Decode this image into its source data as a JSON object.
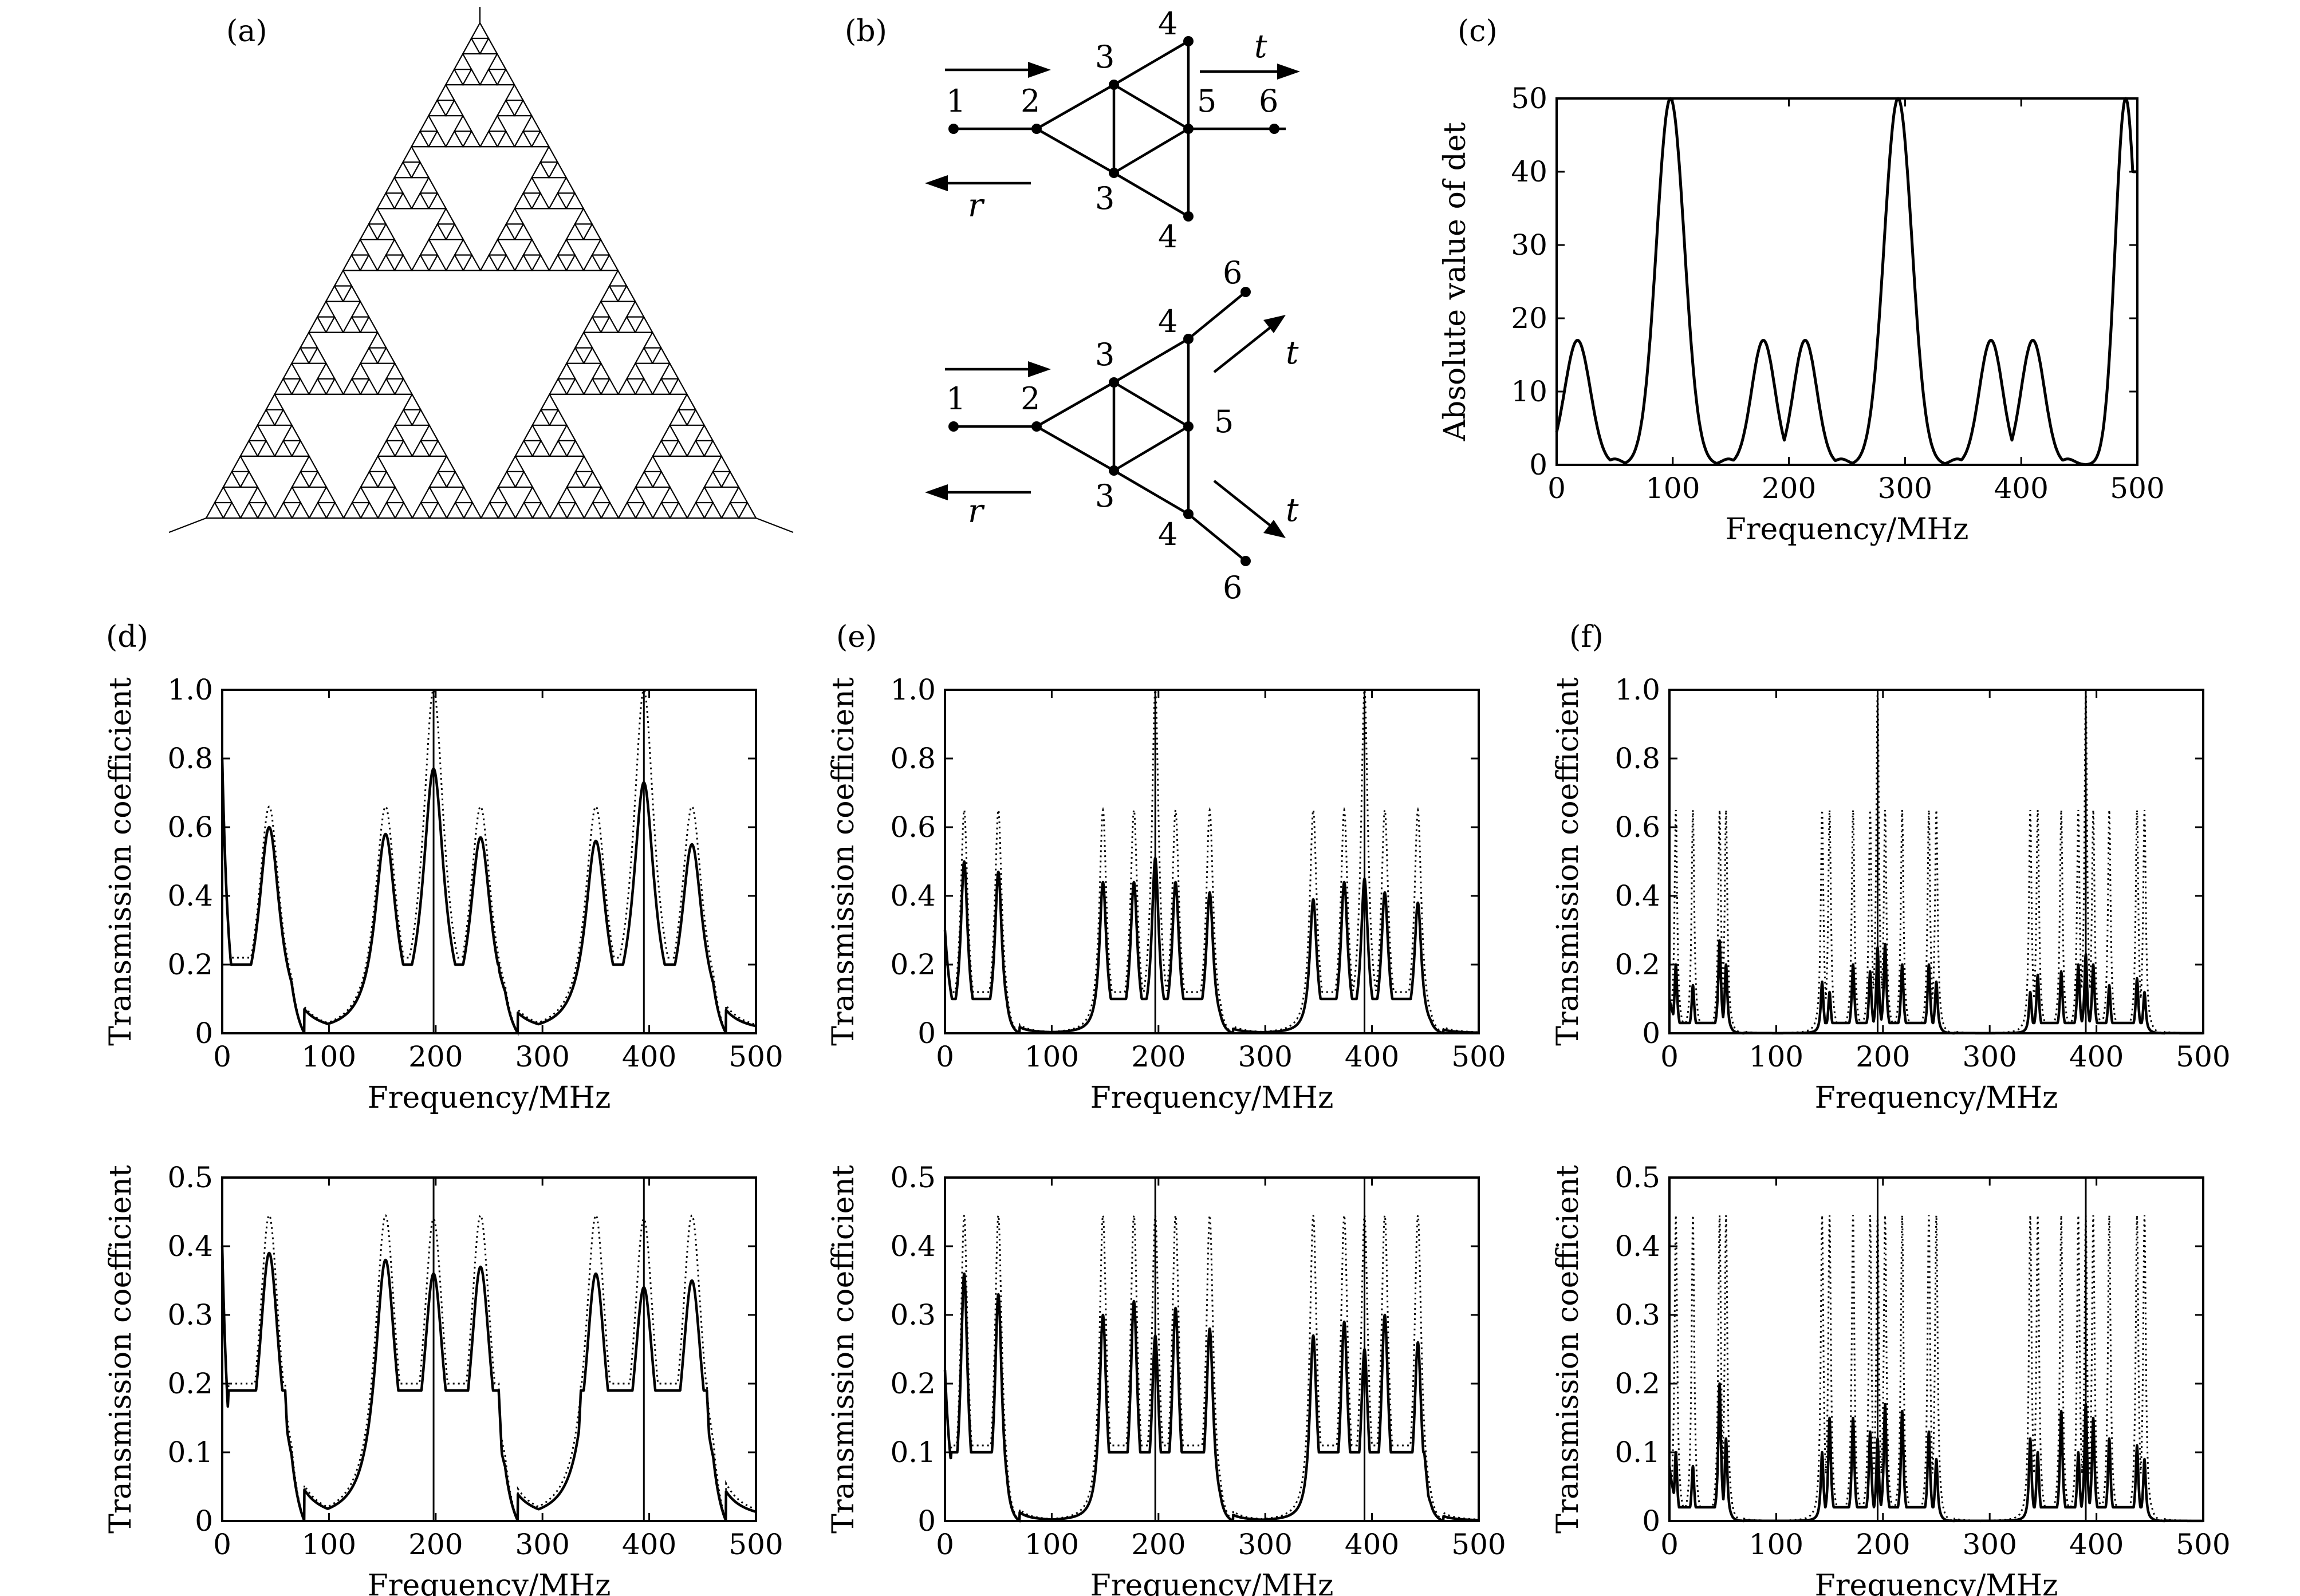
{
  "panels": {
    "a": {
      "label": "(a)"
    },
    "b": {
      "label": "(b)",
      "top_graph": {
        "node_labels": [
          "1",
          "2",
          "3",
          "3",
          "4",
          "4",
          "5",
          "6"
        ],
        "arrow_labels": {
          "transmitted": "t",
          "reflected": "r"
        }
      },
      "bottom_graph": {
        "node_labels": [
          "1",
          "2",
          "3",
          "3",
          "4",
          "4",
          "5",
          "6",
          "6"
        ],
        "arrow_labels": {
          "transmitted_upper": "t",
          "transmitted_lower": "t",
          "reflected": "r"
        }
      }
    },
    "c": {
      "label": "(c)"
    },
    "d": {
      "label": "(d)"
    },
    "e": {
      "label": "(e)"
    },
    "f": {
      "label": "(f)"
    }
  },
  "chart_data": [
    {
      "id": "c",
      "type": "line",
      "xlabel": "Frequency/MHz",
      "ylabel": "Absolute value of det",
      "xlim": [
        0,
        500
      ],
      "ylim": [
        0,
        50
      ],
      "xticks": [
        "0",
        "100",
        "200",
        "300",
        "400",
        "500"
      ],
      "yticks": [
        "0",
        "10",
        "20",
        "30",
        "40",
        "50"
      ],
      "peaks": [
        {
          "x": 18,
          "y": 17,
          "w": 11
        },
        {
          "x": 50,
          "y": 0.8,
          "w": 6
        },
        {
          "x": 98,
          "y": 50,
          "w": 12
        },
        {
          "x": 148,
          "y": 0.8,
          "w": 6
        },
        {
          "x": 178,
          "y": 17,
          "w": 10
        },
        {
          "x": 214,
          "y": 17,
          "w": 10
        },
        {
          "x": 245,
          "y": 0.8,
          "w": 6
        },
        {
          "x": 294,
          "y": 50,
          "w": 12
        },
        {
          "x": 345,
          "y": 0.8,
          "w": 6
        },
        {
          "x": 374,
          "y": 17,
          "w": 10
        },
        {
          "x": 410,
          "y": 17,
          "w": 10
        },
        {
          "x": 440,
          "y": 0.8,
          "w": 6
        },
        {
          "x": 490,
          "y": 50,
          "w": 9
        }
      ]
    },
    {
      "id": "d-top",
      "type": "line",
      "xlabel": "Frequency/MHz",
      "ylabel": "Transmission coefficient",
      "xlim": [
        0,
        500
      ],
      "ylim": [
        0,
        1.0
      ],
      "xticks": [
        "0",
        "100",
        "200",
        "300",
        "400",
        "500"
      ],
      "yticks": [
        "0",
        "0.2",
        "0.4",
        "0.6",
        "0.8",
        "1.0"
      ],
      "peak_width": 12,
      "bands": [
        [
          0,
          65
        ],
        [
          135,
          265
        ],
        [
          330,
          460
        ]
      ],
      "ripples": [
        70,
        130,
        270,
        325,
        465
      ],
      "ripple_height": 0.04,
      "valley": [
        0.22,
        0.2
      ],
      "peaks_solid": [
        {
          "x": 44,
          "y": 0.6
        },
        {
          "x": 153,
          "y": 0.58
        },
        {
          "x": 198,
          "y": 0.77
        },
        {
          "x": 242,
          "y": 0.57
        },
        {
          "x": 350,
          "y": 0.56
        },
        {
          "x": 395,
          "y": 0.73
        },
        {
          "x": 440,
          "y": 0.55
        }
      ],
      "peaks_dotted": [
        {
          "x": 44,
          "y": 0.66
        },
        {
          "x": 153,
          "y": 0.66
        },
        {
          "x": 198,
          "y": 1.0
        },
        {
          "x": 242,
          "y": 0.66
        },
        {
          "x": 350,
          "y": 0.66
        },
        {
          "x": 395,
          "y": 1.0
        },
        {
          "x": 440,
          "y": 0.66
        }
      ],
      "start_value": 0.8,
      "spikes": [
        198,
        395
      ]
    },
    {
      "id": "d-bottom",
      "type": "line",
      "xlabel": "Frequency/MHz",
      "ylabel": "Transmission coefficient",
      "xlim": [
        0,
        500
      ],
      "ylim": [
        0,
        0.5
      ],
      "xticks": [
        "0",
        "100",
        "200",
        "300",
        "400",
        "500"
      ],
      "yticks": [
        "0",
        "0.1",
        "0.2",
        "0.3",
        "0.4",
        "0.5"
      ],
      "peak_width": 12,
      "bands": [
        [
          0,
          65
        ],
        [
          135,
          265
        ],
        [
          330,
          460
        ]
      ],
      "ripples": [
        75,
        130,
        270,
        325,
        470
      ],
      "ripple_height": 0.015,
      "valley": [
        0.2,
        0.19
      ],
      "peaks_solid": [
        {
          "x": 44,
          "y": 0.39
        },
        {
          "x": 153,
          "y": 0.38
        },
        {
          "x": 198,
          "y": 0.36
        },
        {
          "x": 242,
          "y": 0.37
        },
        {
          "x": 350,
          "y": 0.36
        },
        {
          "x": 395,
          "y": 0.34
        },
        {
          "x": 440,
          "y": 0.35
        }
      ],
      "peaks_dotted": [
        {
          "x": 44,
          "y": 0.445
        },
        {
          "x": 153,
          "y": 0.445
        },
        {
          "x": 198,
          "y": 0.44
        },
        {
          "x": 242,
          "y": 0.445
        },
        {
          "x": 350,
          "y": 0.445
        },
        {
          "x": 395,
          "y": 0.44
        },
        {
          "x": 440,
          "y": 0.445
        }
      ],
      "start_value": 0.4,
      "spikes": [
        198,
        395
      ]
    },
    {
      "id": "e-top",
      "type": "line",
      "xlabel": "Frequency/MHz",
      "ylabel": "Transmission coefficient",
      "xlim": [
        0,
        500
      ],
      "ylim": [
        0,
        1.0
      ],
      "xticks": [
        "0",
        "100",
        "200",
        "300",
        "400",
        "500"
      ],
      "yticks": [
        "0",
        "0.2",
        "0.4",
        "0.6",
        "0.8",
        "1.0"
      ],
      "peak_width": 4,
      "bands": [
        [
          0,
          58
        ],
        [
          140,
          258
        ],
        [
          335,
          455
        ]
      ],
      "ripples": [],
      "ripple_height": 0,
      "valley": [
        0.12,
        0.1
      ],
      "peaks_solid": [
        {
          "x": 18,
          "y": 0.5
        },
        {
          "x": 50,
          "y": 0.47
        },
        {
          "x": 148,
          "y": 0.44
        },
        {
          "x": 177,
          "y": 0.44
        },
        {
          "x": 197,
          "y": 0.51
        },
        {
          "x": 216,
          "y": 0.44
        },
        {
          "x": 248,
          "y": 0.41
        },
        {
          "x": 345,
          "y": 0.39
        },
        {
          "x": 374,
          "y": 0.44
        },
        {
          "x": 393,
          "y": 0.45
        },
        {
          "x": 412,
          "y": 0.41
        },
        {
          "x": 443,
          "y": 0.38
        }
      ],
      "peaks_dotted": [
        {
          "x": 18,
          "y": 0.65
        },
        {
          "x": 50,
          "y": 0.65
        },
        {
          "x": 148,
          "y": 0.65
        },
        {
          "x": 177,
          "y": 0.65
        },
        {
          "x": 197,
          "y": 1.0
        },
        {
          "x": 216,
          "y": 0.65
        },
        {
          "x": 248,
          "y": 0.65
        },
        {
          "x": 345,
          "y": 0.65
        },
        {
          "x": 374,
          "y": 0.65
        },
        {
          "x": 393,
          "y": 1.0
        },
        {
          "x": 412,
          "y": 0.65
        },
        {
          "x": 443,
          "y": 0.65
        }
      ],
      "start_value": 0.3,
      "spikes": [
        197,
        393
      ]
    },
    {
      "id": "e-bottom",
      "type": "line",
      "xlabel": "Frequency/MHz",
      "ylabel": "Transmission coefficient",
      "xlim": [
        0,
        500
      ],
      "ylim": [
        0,
        0.5
      ],
      "xticks": [
        "0",
        "100",
        "200",
        "300",
        "400",
        "500"
      ],
      "yticks": [
        "0",
        "0.1",
        "0.2",
        "0.3",
        "0.4",
        "0.5"
      ],
      "peak_width": 4,
      "bands": [
        [
          0,
          58
        ],
        [
          140,
          258
        ],
        [
          335,
          455
        ]
      ],
      "ripples": [],
      "ripple_height": 0,
      "valley": [
        0.11,
        0.1
      ],
      "peaks_solid": [
        {
          "x": 18,
          "y": 0.36
        },
        {
          "x": 50,
          "y": 0.33
        },
        {
          "x": 148,
          "y": 0.3
        },
        {
          "x": 177,
          "y": 0.32
        },
        {
          "x": 197,
          "y": 0.27
        },
        {
          "x": 216,
          "y": 0.31
        },
        {
          "x": 248,
          "y": 0.28
        },
        {
          "x": 345,
          "y": 0.27
        },
        {
          "x": 374,
          "y": 0.29
        },
        {
          "x": 393,
          "y": 0.25
        },
        {
          "x": 412,
          "y": 0.3
        },
        {
          "x": 443,
          "y": 0.26
        }
      ],
      "peaks_dotted": [
        {
          "x": 18,
          "y": 0.445
        },
        {
          "x": 50,
          "y": 0.445
        },
        {
          "x": 148,
          "y": 0.445
        },
        {
          "x": 177,
          "y": 0.445
        },
        {
          "x": 197,
          "y": 0.445
        },
        {
          "x": 216,
          "y": 0.445
        },
        {
          "x": 248,
          "y": 0.445
        },
        {
          "x": 345,
          "y": 0.445
        },
        {
          "x": 374,
          "y": 0.445
        },
        {
          "x": 393,
          "y": 0.445
        },
        {
          "x": 412,
          "y": 0.445
        },
        {
          "x": 443,
          "y": 0.445
        }
      ],
      "start_value": 0.22,
      "spikes": [
        197,
        393
      ]
    },
    {
      "id": "f-top",
      "type": "line",
      "xlabel": "Frequency/MHz",
      "ylabel": "Transmission coefficient",
      "xlim": [
        0,
        500
      ],
      "ylim": [
        0,
        1.0
      ],
      "xticks": [
        "0",
        "100",
        "200",
        "300",
        "400",
        "500"
      ],
      "yticks": [
        "0",
        "0.2",
        "0.4",
        "0.6",
        "0.8",
        "1.0"
      ],
      "peak_width": 1.5,
      "bands": [
        [
          0,
          58
        ],
        [
          138,
          255
        ],
        [
          332,
          452
        ]
      ],
      "ripples": [],
      "ripple_height": 0,
      "valley": [
        0.03,
        0.03
      ],
      "peaks_solid": [
        {
          "x": 6,
          "y": 0.2
        },
        {
          "x": 22,
          "y": 0.14
        },
        {
          "x": 47,
          "y": 0.27
        },
        {
          "x": 53,
          "y": 0.2
        },
        {
          "x": 143,
          "y": 0.15
        },
        {
          "x": 150,
          "y": 0.12
        },
        {
          "x": 172,
          "y": 0.2
        },
        {
          "x": 188,
          "y": 0.18
        },
        {
          "x": 195,
          "y": 0.25
        },
        {
          "x": 202,
          "y": 0.26
        },
        {
          "x": 218,
          "y": 0.2
        },
        {
          "x": 243,
          "y": 0.2
        },
        {
          "x": 250,
          "y": 0.15
        },
        {
          "x": 338,
          "y": 0.12
        },
        {
          "x": 345,
          "y": 0.17
        },
        {
          "x": 367,
          "y": 0.18
        },
        {
          "x": 383,
          "y": 0.2
        },
        {
          "x": 390,
          "y": 0.23
        },
        {
          "x": 397,
          "y": 0.2
        },
        {
          "x": 412,
          "y": 0.14
        },
        {
          "x": 438,
          "y": 0.16
        },
        {
          "x": 445,
          "y": 0.12
        }
      ],
      "peaks_dotted": [
        {
          "x": 6,
          "y": 0.65
        },
        {
          "x": 22,
          "y": 0.65
        },
        {
          "x": 47,
          "y": 0.65
        },
        {
          "x": 53,
          "y": 0.65
        },
        {
          "x": 143,
          "y": 0.65
        },
        {
          "x": 150,
          "y": 0.65
        },
        {
          "x": 172,
          "y": 0.65
        },
        {
          "x": 188,
          "y": 0.65
        },
        {
          "x": 195,
          "y": 1.0
        },
        {
          "x": 202,
          "y": 0.65
        },
        {
          "x": 218,
          "y": 0.65
        },
        {
          "x": 243,
          "y": 0.65
        },
        {
          "x": 250,
          "y": 0.65
        },
        {
          "x": 338,
          "y": 0.65
        },
        {
          "x": 345,
          "y": 0.65
        },
        {
          "x": 367,
          "y": 0.65
        },
        {
          "x": 383,
          "y": 0.65
        },
        {
          "x": 390,
          "y": 1.0
        },
        {
          "x": 397,
          "y": 0.65
        },
        {
          "x": 412,
          "y": 0.65
        },
        {
          "x": 438,
          "y": 0.65
        },
        {
          "x": 445,
          "y": 0.65
        }
      ],
      "start_value": 0.1,
      "spikes": [
        195,
        390
      ]
    },
    {
      "id": "f-bottom",
      "type": "line",
      "xlabel": "Frequency/MHz",
      "ylabel": "Transmission coefficient",
      "xlim": [
        0,
        500
      ],
      "ylim": [
        0,
        0.5
      ],
      "xticks": [
        "0",
        "100",
        "200",
        "300",
        "400",
        "500"
      ],
      "yticks": [
        "0",
        "0.1",
        "0.2",
        "0.3",
        "0.4",
        "0.5"
      ],
      "peak_width": 1.5,
      "bands": [
        [
          0,
          58
        ],
        [
          138,
          255
        ],
        [
          332,
          452
        ]
      ],
      "ripples": [],
      "ripple_height": 0,
      "valley": [
        0.02,
        0.02
      ],
      "peaks_solid": [
        {
          "x": 6,
          "y": 0.1
        },
        {
          "x": 22,
          "y": 0.08
        },
        {
          "x": 47,
          "y": 0.2
        },
        {
          "x": 53,
          "y": 0.12
        },
        {
          "x": 143,
          "y": 0.1
        },
        {
          "x": 150,
          "y": 0.15
        },
        {
          "x": 172,
          "y": 0.15
        },
        {
          "x": 188,
          "y": 0.13
        },
        {
          "x": 195,
          "y": 0.12
        },
        {
          "x": 202,
          "y": 0.17
        },
        {
          "x": 218,
          "y": 0.16
        },
        {
          "x": 243,
          "y": 0.13
        },
        {
          "x": 250,
          "y": 0.09
        },
        {
          "x": 338,
          "y": 0.12
        },
        {
          "x": 345,
          "y": 0.1
        },
        {
          "x": 367,
          "y": 0.16
        },
        {
          "x": 383,
          "y": 0.1
        },
        {
          "x": 390,
          "y": 0.17
        },
        {
          "x": 397,
          "y": 0.15
        },
        {
          "x": 412,
          "y": 0.12
        },
        {
          "x": 438,
          "y": 0.11
        },
        {
          "x": 445,
          "y": 0.09
        }
      ],
      "peaks_dotted": [
        {
          "x": 6,
          "y": 0.445
        },
        {
          "x": 22,
          "y": 0.445
        },
        {
          "x": 47,
          "y": 0.445
        },
        {
          "x": 53,
          "y": 0.445
        },
        {
          "x": 143,
          "y": 0.445
        },
        {
          "x": 150,
          "y": 0.445
        },
        {
          "x": 172,
          "y": 0.445
        },
        {
          "x": 188,
          "y": 0.445
        },
        {
          "x": 195,
          "y": 0.445
        },
        {
          "x": 202,
          "y": 0.445
        },
        {
          "x": 218,
          "y": 0.445
        },
        {
          "x": 243,
          "y": 0.445
        },
        {
          "x": 250,
          "y": 0.445
        },
        {
          "x": 338,
          "y": 0.445
        },
        {
          "x": 345,
          "y": 0.445
        },
        {
          "x": 367,
          "y": 0.445
        },
        {
          "x": 383,
          "y": 0.445
        },
        {
          "x": 390,
          "y": 0.445
        },
        {
          "x": 397,
          "y": 0.445
        },
        {
          "x": 412,
          "y": 0.445
        },
        {
          "x": 438,
          "y": 0.445
        },
        {
          "x": 445,
          "y": 0.445
        }
      ],
      "start_value": 0.08,
      "spikes": [
        195,
        390
      ]
    }
  ]
}
